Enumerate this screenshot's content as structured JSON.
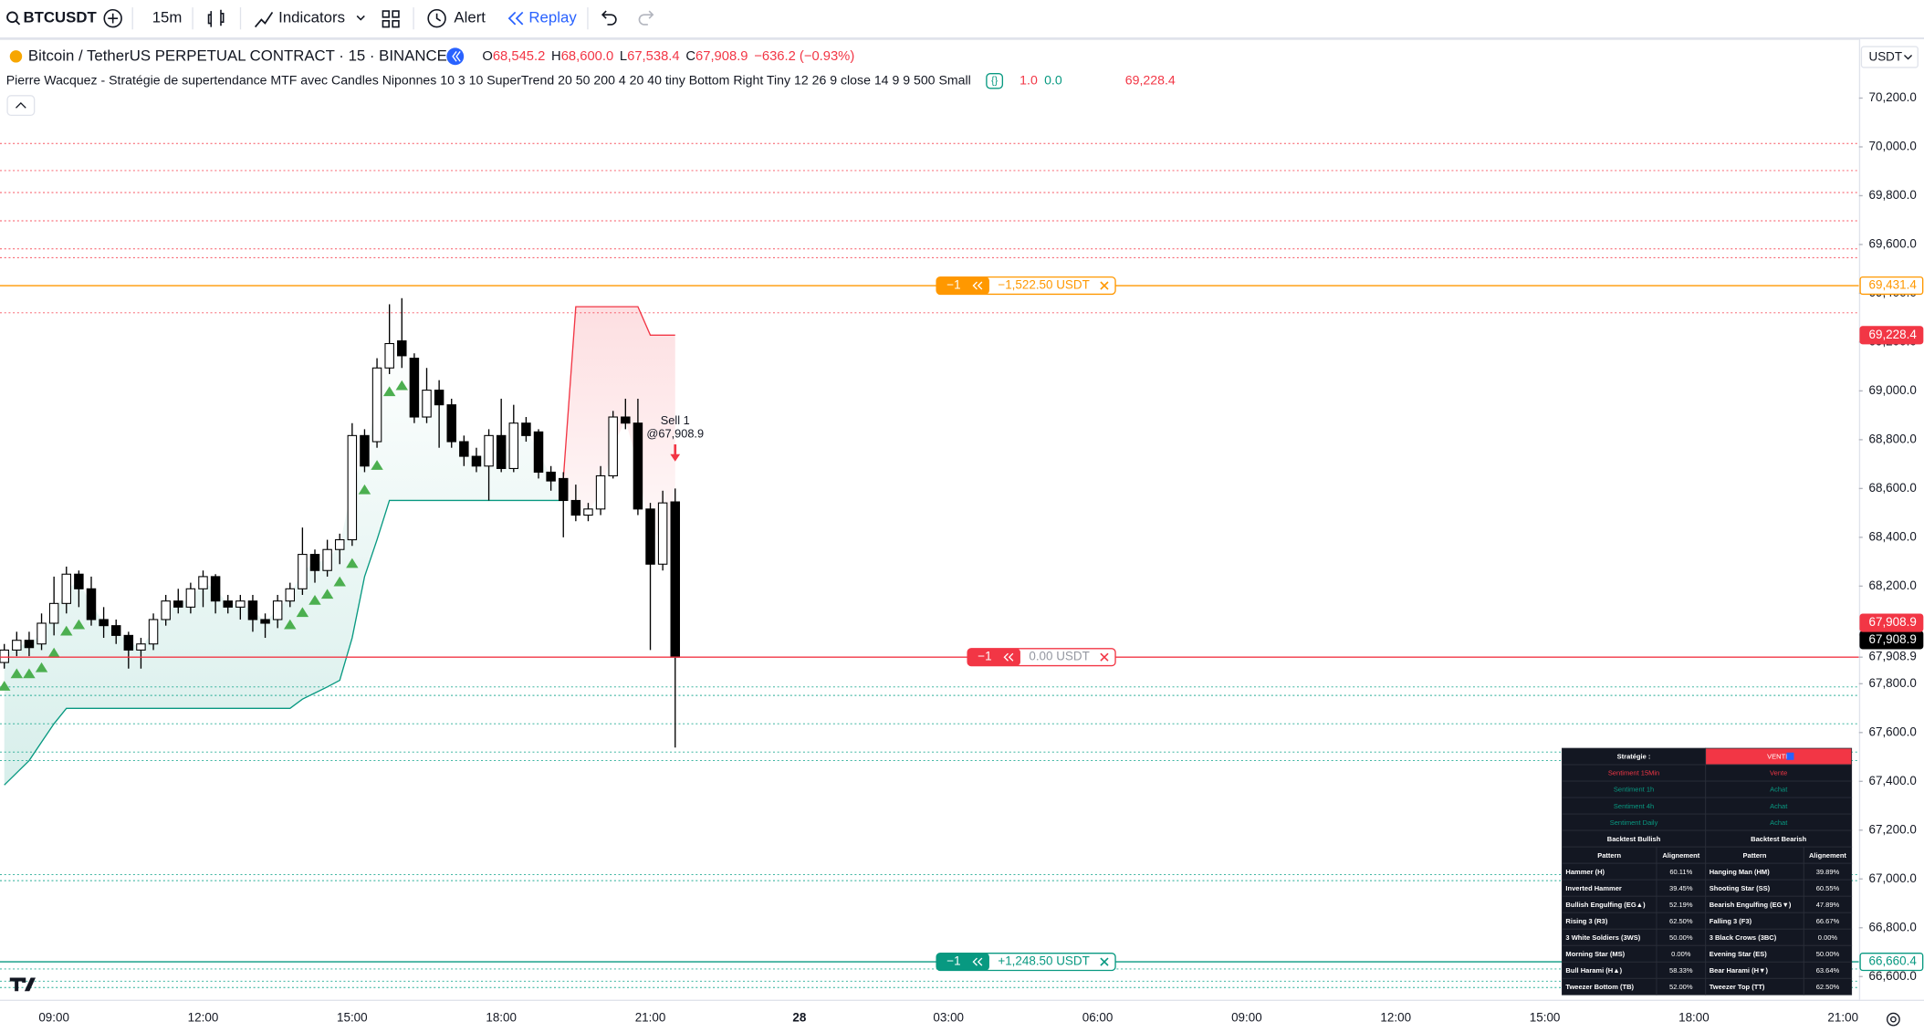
{
  "toolbar": {
    "symbol": "BTCUSDT",
    "interval": "15m",
    "indicators": "Indicators",
    "alert": "Alert",
    "replay": "Replay"
  },
  "chart": {
    "type": "candlestick",
    "title": "Bitcoin / TetherUS PERPETUAL CONTRACT · 15 · BINANCE",
    "ohlc": [
      {
        "label": "O",
        "value": "68,545.2"
      },
      {
        "label": "H",
        "value": "68,600.0"
      },
      {
        "label": "L",
        "value": "67,538.4"
      },
      {
        "label": "C",
        "value": "67,908.9"
      }
    ],
    "change": "−636.2 (−0.93%)",
    "indicator": {
      "name": "Pierre Wacquez - Stratégie de supertendance MTF avec Candles Niponnes 10 3 10 SuperTrend 20 50 200 4 20 40 tiny Bottom Right Tiny 12 26 9 close 14 9 9 500 Small",
      "values": [
        "1.0",
        "0.0",
        "69,228.4"
      ],
      "value_colors": [
        "#f23645",
        "#089981",
        "#f23645"
      ]
    },
    "currency": "USDT",
    "signal": {
      "label": "Sell 1",
      "price": "@67,908.9",
      "color": "#f23645"
    },
    "up_color": "#ffffff",
    "down_color": "#000000",
    "candles": [
      [
        67887,
        67963,
        67862,
        67938
      ],
      [
        67938,
        68013,
        67913,
        67978
      ],
      [
        67978,
        68013,
        67913,
        67948
      ],
      [
        67963,
        68088,
        67938,
        68048
      ],
      [
        68048,
        68239,
        67998,
        68129
      ],
      [
        68129,
        68280,
        68088,
        68249
      ],
      [
        68249,
        68264,
        68114,
        68189
      ],
      [
        68189,
        68239,
        68038,
        68063
      ],
      [
        68063,
        68114,
        67988,
        68038
      ],
      [
        68038,
        68063,
        67963,
        67998
      ],
      [
        67998,
        68013,
        67862,
        67938
      ],
      [
        67938,
        67988,
        67862,
        67963
      ],
      [
        67963,
        68088,
        67938,
        68063
      ],
      [
        68063,
        68164,
        68038,
        68139
      ],
      [
        68139,
        68189,
        68088,
        68114
      ],
      [
        68114,
        68214,
        68088,
        68189
      ],
      [
        68189,
        68264,
        68114,
        68239
      ],
      [
        68239,
        68249,
        68088,
        68139
      ],
      [
        68139,
        68164,
        68088,
        68114
      ],
      [
        68114,
        68164,
        68063,
        68139
      ],
      [
        68139,
        68164,
        68013,
        68063
      ],
      [
        68063,
        68088,
        67988,
        68048
      ],
      [
        68063,
        68164,
        68028,
        68139
      ],
      [
        68139,
        68214,
        68114,
        68189
      ],
      [
        68189,
        68440,
        68164,
        68330
      ],
      [
        68330,
        68350,
        68214,
        68264
      ],
      [
        68264,
        68390,
        68239,
        68350
      ],
      [
        68350,
        68415,
        68290,
        68390
      ],
      [
        68390,
        68868,
        68365,
        68817
      ],
      [
        68817,
        68843,
        68667,
        68692
      ],
      [
        68792,
        69134,
        68767,
        69094
      ],
      [
        69094,
        69355,
        69069,
        69194
      ],
      [
        69205,
        69380,
        69094,
        69144
      ],
      [
        69134,
        69154,
        68868,
        68893
      ],
      [
        68893,
        69094,
        68868,
        69003
      ],
      [
        69003,
        69044,
        68767,
        68943
      ],
      [
        68943,
        68968,
        68767,
        68792
      ],
      [
        68792,
        68817,
        68692,
        68732
      ],
      [
        68732,
        68767,
        68667,
        68692
      ],
      [
        68692,
        68843,
        68551,
        68817
      ],
      [
        68817,
        68968,
        68667,
        68682
      ],
      [
        68682,
        68943,
        68667,
        68868
      ],
      [
        68868,
        68893,
        68792,
        68817
      ],
      [
        68832,
        68843,
        68641,
        68667
      ],
      [
        68667,
        68692,
        68591,
        68631
      ],
      [
        68641,
        68667,
        68400,
        68551
      ],
      [
        68551,
        68616,
        68466,
        68491
      ],
      [
        68491,
        68541,
        68466,
        68516
      ],
      [
        68516,
        68692,
        68491,
        68652
      ],
      [
        68652,
        68918,
        68641,
        68893
      ],
      [
        68893,
        68968,
        68843,
        68868
      ],
      [
        68868,
        68968,
        68491,
        68516
      ],
      [
        68516,
        68541,
        67938,
        68290
      ],
      [
        68290,
        68591,
        68264,
        68541
      ],
      [
        68545.2,
        68600,
        67538.4,
        67908.9
      ]
    ],
    "supertrend": [
      {
        "color": "#089981",
        "values": [
          67385,
          67435,
          67485,
          67561,
          67636,
          67699,
          67699,
          67699,
          67699,
          67699,
          67699,
          67699,
          67699,
          67699,
          67699,
          67699,
          67699,
          67699,
          67699,
          67699,
          67699,
          67699,
          67699,
          67699,
          67737,
          67762,
          67787,
          67814,
          67988,
          68239,
          68390,
          68551,
          68551,
          68551,
          68551,
          68551,
          68551,
          68551,
          68551,
          68551,
          68551,
          68551,
          68551,
          68551,
          68551,
          68551,
          null,
          null,
          null,
          null,
          null,
          null,
          null,
          null,
          null
        ]
      },
      {
        "color": "#f23645",
        "values": [
          null,
          null,
          null,
          null,
          null,
          null,
          null,
          null,
          null,
          null,
          null,
          null,
          null,
          null,
          null,
          null,
          null,
          null,
          null,
          null,
          null,
          null,
          null,
          null,
          null,
          null,
          null,
          null,
          null,
          null,
          null,
          null,
          null,
          null,
          null,
          null,
          null,
          null,
          null,
          null,
          null,
          null,
          null,
          null,
          null,
          68641,
          69345,
          69345,
          69345,
          69345,
          69345,
          69345,
          69228.4,
          69228.4,
          69228.4
        ]
      }
    ],
    "levels": [
      {
        "value": 70014,
        "color": "#f7525f"
      },
      {
        "value": 69903,
        "color": "#f7525f"
      },
      {
        "value": 69813,
        "color": "#f7525f"
      },
      {
        "value": 69697,
        "color": "#f7525f"
      },
      {
        "value": 69582,
        "color": "#f7525f"
      },
      {
        "value": 69546,
        "color": "#f7525f"
      },
      {
        "value": 69320,
        "color": "#f7525f"
      },
      {
        "value": 67787,
        "color": "#22ab94"
      },
      {
        "value": 67752,
        "color": "#22ab94"
      },
      {
        "value": 67636,
        "color": "#22ab94"
      },
      {
        "value": 67520,
        "color": "#22ab94"
      },
      {
        "value": 67485,
        "color": "#22ab94"
      },
      {
        "value": 67018,
        "color": "#22ab94"
      },
      {
        "value": 66993,
        "color": "#22ab94"
      },
      {
        "value": 66631,
        "color": "#22ab94"
      },
      {
        "value": 66581,
        "color": "#22ab94"
      },
      {
        "value": 66555,
        "color": "#22ab94"
      }
    ],
    "positions": [
      {
        "value": 69431.4,
        "qty": "−1",
        "pnl": "−1,522.50 USDT",
        "color": "#ff9800"
      },
      {
        "value": 67908.9,
        "qty": "−1",
        "pnl": "0.00 USDT",
        "color": "#f23645"
      },
      {
        "value": 66660.4,
        "qty": "−1",
        "pnl": "+1,248.50 USDT",
        "color": "#089981"
      }
    ],
    "price_tags": [
      {
        "value": 69431.4,
        "label": "69,431.4",
        "color": "#ff9800",
        "style": "outline"
      },
      {
        "value": 69228.4,
        "label": "69,228.4",
        "color": "#f23645",
        "style": "solid"
      },
      {
        "value": 67908.9,
        "label": "67,908.9",
        "color": "#ffffff",
        "style": "plain"
      },
      {
        "value": 67908.9,
        "label": "67,908.9",
        "color": "#000000",
        "style": "solid"
      },
      {
        "value": 67908.9,
        "label": "67,908.9",
        "color": "#f23645",
        "style": "solid"
      },
      {
        "value": 66660.4,
        "label": "66,660.4",
        "color": "#089981",
        "style": "outline"
      }
    ],
    "ylim": [
      66505,
      70431
    ],
    "yticks": [
      {
        "value": 70200,
        "label": "70,200.0"
      },
      {
        "value": 70000,
        "label": "70,000.0"
      },
      {
        "value": 69800,
        "label": "69,800.0"
      },
      {
        "value": 69600,
        "label": "69,600.0"
      },
      {
        "value": 69400,
        "label": "69,400.0"
      },
      {
        "value": 69200,
        "label": "69,200.0"
      },
      {
        "value": 69000,
        "label": "69,000.0"
      },
      {
        "value": 68800,
        "label": "68,800.0"
      },
      {
        "value": 68600,
        "label": "68,600.0"
      },
      {
        "value": 68400,
        "label": "68,400.0"
      },
      {
        "value": 68200,
        "label": "68,200.0"
      },
      {
        "value": 68000,
        "label": "68,000.0"
      },
      {
        "value": 67800,
        "label": "67,800.0"
      },
      {
        "value": 67600,
        "label": "67,600.0"
      },
      {
        "value": 67400,
        "label": "67,400.0"
      },
      {
        "value": 67200,
        "label": "67,200.0"
      },
      {
        "value": 67000,
        "label": "67,000.0"
      },
      {
        "value": 66800,
        "label": "66,800.0"
      },
      {
        "value": 66600,
        "label": "66,600.0"
      }
    ],
    "time_labels": [
      "09:00",
      "12:00",
      "15:00",
      "18:00",
      "21:00",
      "28",
      "03:00",
      "06:00",
      "09:00",
      "12:00",
      "15:00",
      "18:00",
      "21:00"
    ]
  },
  "strategy_table": {
    "header": [
      "Stratégie :",
      "VENTE"
    ],
    "sentiments": [
      [
        "Sentiment 15Min",
        "Vente"
      ],
      [
        "Sentiment 1h",
        "Achat"
      ],
      [
        "Sentiment 4h",
        "Achat"
      ],
      [
        "Sentiment Daily",
        "Achat"
      ]
    ],
    "sentiment_colors": [
      "#f23645",
      "#089981",
      "#089981",
      "#089981"
    ],
    "sections": [
      "Backtest Bullish",
      "Backtest Bearish"
    ],
    "columns": [
      "Pattern",
      "Alignement",
      "Pattern",
      "Alignement"
    ],
    "rows": [
      [
        "Hammer (H)",
        "60.11%",
        "Hanging Man (HM)",
        "39.89%"
      ],
      [
        "Inverted Hammer",
        "39.45%",
        "Shooting Star (SS)",
        "60.55%"
      ],
      [
        "Bullish Engulfing (EG▲)",
        "52.19%",
        "Bearish Engulfing (EG▼)",
        "47.89%"
      ],
      [
        "Rising 3 (R3)",
        "62.50%",
        "Falling 3 (F3)",
        "66.67%"
      ],
      [
        "3 White Soldiers (3WS)",
        "50.00%",
        "3 Black Crows (3BC)",
        "0.00%"
      ],
      [
        "Morning Star (MS)",
        "0.00%",
        "Evening Star (ES)",
        "50.00%"
      ],
      [
        "Bull Harami (H▲)",
        "58.33%",
        "Bear Harami (H▼)",
        "63.64%"
      ],
      [
        "Tweezer Bottom (TB)",
        "52.00%",
        "Tweezer Top (TT)",
        "62.50%"
      ]
    ]
  }
}
